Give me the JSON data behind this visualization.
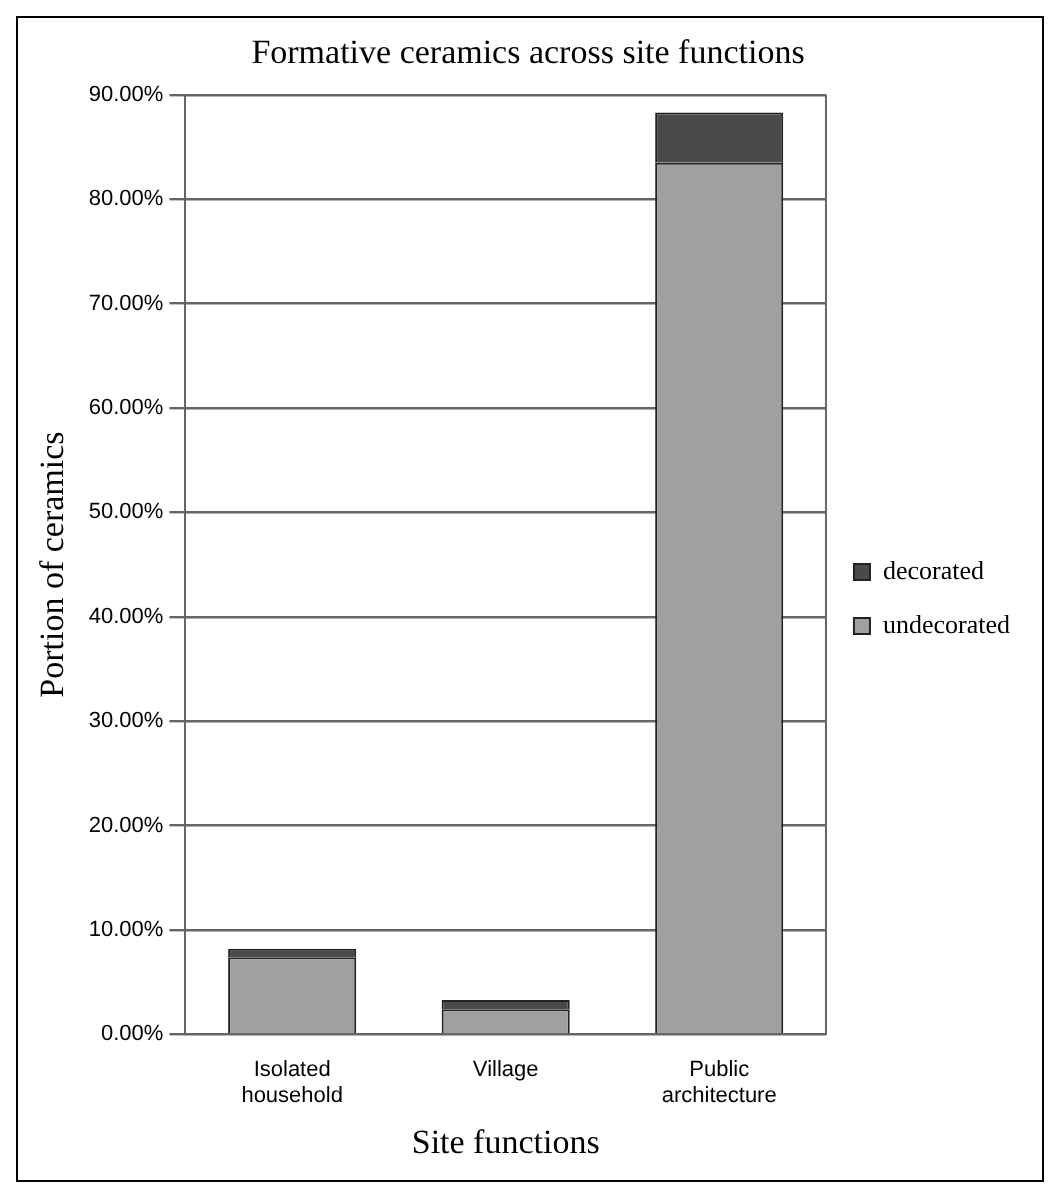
{
  "chart_data": {
    "type": "bar",
    "title": "Formative ceramics across site functions",
    "xlabel": "Site functions",
    "ylabel": "Portion of ceramics",
    "categories": [
      "Isolated household",
      "Village",
      "Public architecture"
    ],
    "stacked": true,
    "series": [
      {
        "name": "undecorated",
        "color": "#a0a0a0",
        "values": [
          7.4,
          2.4,
          83.5
        ]
      },
      {
        "name": "decorated",
        "color": "#4a4a4a",
        "values": [
          0.8,
          0.9,
          4.8
        ]
      }
    ],
    "ylim": [
      0,
      90
    ],
    "yticks": [
      {
        "value": 0,
        "label": "0.00%"
      },
      {
        "value": 10,
        "label": "10.00%"
      },
      {
        "value": 20,
        "label": "20.00%"
      },
      {
        "value": 30,
        "label": "30.00%"
      },
      {
        "value": 40,
        "label": "40.00%"
      },
      {
        "value": 50,
        "label": "50.00%"
      },
      {
        "value": 60,
        "label": "60.00%"
      },
      {
        "value": 70,
        "label": "70.00%"
      },
      {
        "value": 80,
        "label": "80.00%"
      },
      {
        "value": 90,
        "label": "90.00%"
      }
    ],
    "grid": "y",
    "legend": "right"
  }
}
